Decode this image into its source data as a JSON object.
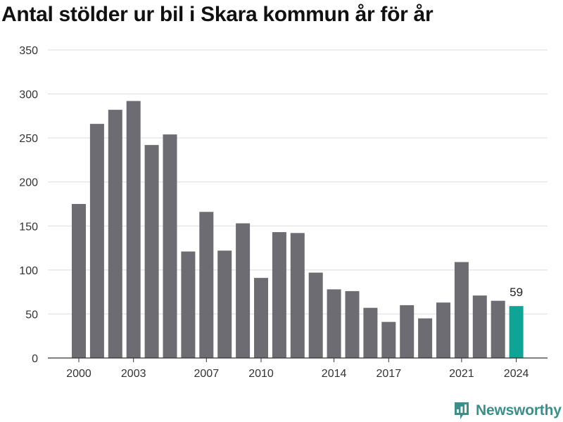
{
  "title": "Antal stölder ur bil i Skara kommun år för år",
  "brand": {
    "name": "Newsworthy",
    "icon": "newsworthy-logo-icon",
    "color": "#3a8f8a"
  },
  "colors": {
    "bar": "#6d6c72",
    "highlight": "#0ea597",
    "grid": "#dddddd",
    "axis": "#333333",
    "text": "#333333"
  },
  "chart_data": {
    "type": "bar",
    "title": "Antal stölder ur bil i Skara kommun år för år",
    "xlabel": "",
    "ylabel": "",
    "categories": [
      2000,
      2001,
      2002,
      2003,
      2004,
      2005,
      2006,
      2007,
      2008,
      2009,
      2010,
      2011,
      2012,
      2013,
      2014,
      2015,
      2016,
      2017,
      2018,
      2019,
      2020,
      2021,
      2022,
      2023,
      2024
    ],
    "values": [
      175,
      266,
      282,
      292,
      242,
      254,
      121,
      166,
      122,
      153,
      91,
      143,
      142,
      97,
      78,
      76,
      57,
      41,
      60,
      45,
      63,
      109,
      71,
      65,
      59
    ],
    "x_tick_labels": [
      "2000",
      "2003",
      "2007",
      "2010",
      "2014",
      "2017",
      "2021",
      "2024"
    ],
    "y_ticks": [
      0,
      50,
      100,
      150,
      200,
      250,
      300,
      350
    ],
    "ylim": [
      0,
      350
    ],
    "grid": true,
    "legend": "none",
    "highlight": {
      "category": 2024,
      "label": "59"
    }
  }
}
